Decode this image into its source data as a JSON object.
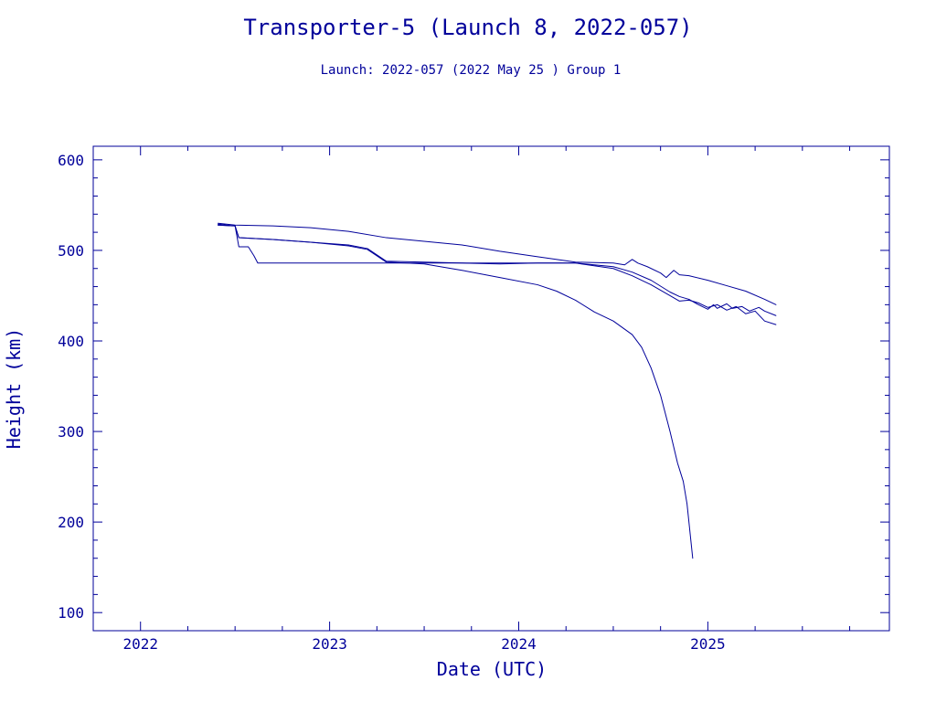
{
  "colors": {
    "text": "#00009a",
    "axis": "#00009a",
    "series": "#00009a",
    "background": "#ffffff"
  },
  "chart_data": {
    "type": "line",
    "title": "Transporter-5 (Launch 8, 2022-057)",
    "subtitle": "Launch: 2022-057  (2022 May 25 )  Group 1",
    "xlabel": "Date (UTC)",
    "ylabel": "Height (km)",
    "xlim": [
      2021.75,
      2025.96
    ],
    "ylim": [
      80,
      615
    ],
    "x_ticks": [
      {
        "value": 2022,
        "label": "2022"
      },
      {
        "value": 2023,
        "label": "2023"
      },
      {
        "value": 2024,
        "label": "2024"
      },
      {
        "value": 2025,
        "label": "2025"
      }
    ],
    "y_ticks": [
      {
        "value": 100,
        "label": "100"
      },
      {
        "value": 200,
        "label": "200"
      },
      {
        "value": 300,
        "label": "300"
      },
      {
        "value": 400,
        "label": "400"
      },
      {
        "value": 500,
        "label": "500"
      },
      {
        "value": 600,
        "label": "600"
      }
    ],
    "grid": false,
    "legend": "none",
    "series": [
      {
        "x": [
          2022.41,
          2022.5,
          2022.7,
          2022.9,
          2023.1,
          2023.3,
          2023.5,
          2023.7,
          2023.9,
          2024.1,
          2024.3,
          2024.5,
          2024.56,
          2024.6,
          2024.63,
          2024.68,
          2024.75,
          2024.78,
          2024.82,
          2024.85,
          2024.9,
          2025.0,
          2025.1,
          2025.2,
          2025.3,
          2025.36
        ],
        "y": [
          530,
          528,
          527,
          525,
          521,
          514,
          510,
          506,
          499,
          493,
          487,
          486,
          484,
          490,
          486,
          482,
          475,
          470,
          478,
          473,
          472,
          467,
          461,
          455,
          446,
          440
        ]
      },
      {
        "x": [
          2022.41,
          2022.5,
          2022.52,
          2022.7,
          2022.9,
          2023.1,
          2023.2,
          2023.3,
          2023.5,
          2023.7,
          2023.9,
          2024.1,
          2024.3,
          2024.5,
          2024.6,
          2024.7,
          2024.8,
          2024.85,
          2024.9,
          2024.95,
          2025.0,
          2025.03,
          2025.05,
          2025.1,
          2025.13,
          2025.18,
          2025.22,
          2025.27,
          2025.3,
          2025.36
        ],
        "y": [
          529,
          527,
          514,
          512,
          509,
          506,
          502,
          488,
          487,
          486,
          485,
          486,
          486,
          482,
          476,
          467,
          454,
          449,
          446,
          440,
          435,
          440,
          436,
          441,
          436,
          438,
          433,
          437,
          433,
          428
        ]
      },
      {
        "x": [
          2022.41,
          2022.5,
          2022.52,
          2022.57,
          2022.6,
          2022.62,
          2022.7,
          2022.9,
          2023.1,
          2023.3,
          2023.5,
          2023.7,
          2023.9,
          2024.1,
          2024.3,
          2024.5,
          2024.6,
          2024.7,
          2024.8,
          2024.85,
          2024.9,
          2024.95,
          2025.0,
          2025.05,
          2025.1,
          2025.15,
          2025.2,
          2025.25,
          2025.3,
          2025.36
        ],
        "y": [
          528,
          527,
          504,
          504,
          494,
          486,
          486,
          486,
          486,
          486,
          486,
          486,
          486,
          486,
          486,
          480,
          472,
          462,
          450,
          444,
          445,
          442,
          437,
          440,
          434,
          438,
          430,
          433,
          422,
          418
        ]
      },
      {
        "x": [
          2022.41,
          2022.5,
          2022.52,
          2022.7,
          2022.9,
          2023.1,
          2023.2,
          2023.3,
          2023.5,
          2023.7,
          2023.9,
          2024.1,
          2024.2,
          2024.3,
          2024.4,
          2024.5,
          2024.6,
          2024.65,
          2024.7,
          2024.75,
          2024.8,
          2024.84,
          2024.87,
          2024.89,
          2024.9,
          2024.91,
          2024.92
        ],
        "y": [
          528,
          527,
          514,
          512,
          509,
          505,
          501,
          487,
          485,
          478,
          470,
          462,
          455,
          445,
          432,
          422,
          407,
          393,
          370,
          340,
          300,
          265,
          245,
          220,
          200,
          180,
          160
        ]
      }
    ]
  }
}
